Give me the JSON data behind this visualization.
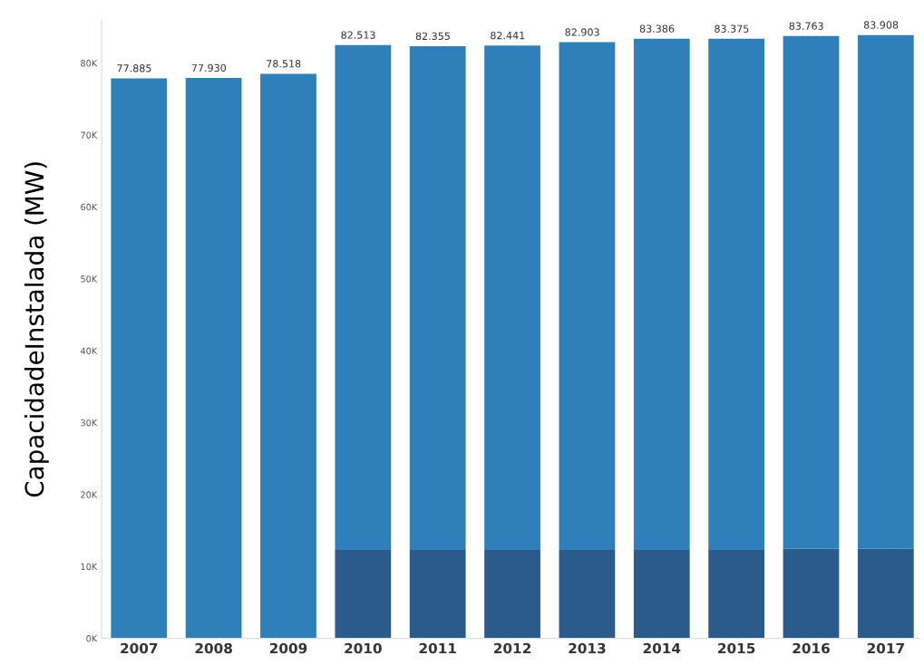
{
  "chart_data": {
    "type": "bar",
    "stacked": true,
    "ylabel": "CapacidadeInstalada (MW)",
    "categories": [
      "2007",
      "2008",
      "2009",
      "2010",
      "2011",
      "2012",
      "2013",
      "2014",
      "2015",
      "2016",
      "2017"
    ],
    "series": [
      {
        "color": "#2b5b8b",
        "values": [
          null,
          null,
          null,
          12.3,
          12.3,
          12.3,
          12.3,
          12.3,
          12.3,
          12.5,
          12.5
        ]
      },
      {
        "color": "#2f80ba",
        "values": [
          77.885,
          77.93,
          78.518,
          70.213,
          70.055,
          70.141,
          70.603,
          71.086,
          71.075,
          71.263,
          71.408
        ]
      }
    ],
    "totals": [
      "77.885",
      "77.930",
      "78.518",
      "82.513",
      "82.355",
      "82.441",
      "82.903",
      "83.386",
      "83.375",
      "83.763",
      "83.908"
    ],
    "ylim": [
      0,
      86
    ],
    "yticks": [
      {
        "value": 0,
        "label": "0K"
      },
      {
        "value": 10,
        "label": "10K"
      },
      {
        "value": 20,
        "label": "20K"
      },
      {
        "value": 30,
        "label": "30K"
      },
      {
        "value": 40,
        "label": "40K"
      },
      {
        "value": 50,
        "label": "50K"
      },
      {
        "value": 60,
        "label": "60K"
      },
      {
        "value": 70,
        "label": "70K"
      },
      {
        "value": 80,
        "label": "80K"
      }
    ],
    "grid": false,
    "legend": false
  }
}
